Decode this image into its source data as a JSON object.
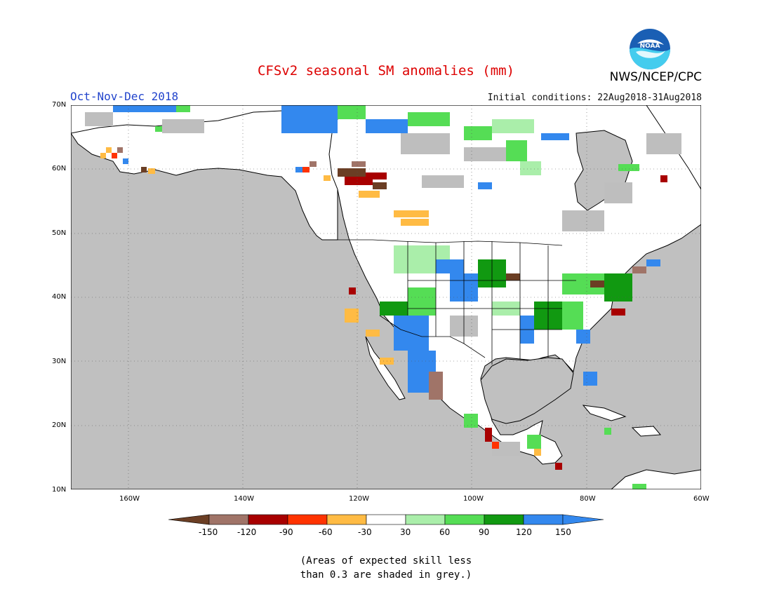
{
  "header": {
    "title": "CFSv2 seasonal SM anomalies (mm)",
    "season": "Oct-Nov-Dec 2018",
    "initial_conditions": "Initial conditions: 22Aug2018-31Aug2018",
    "agency": "NWS/NCEP/CPC",
    "logo_text": "NOAA"
  },
  "map": {
    "lat_range": [
      10,
      70
    ],
    "lon_range": [
      -170,
      -60
    ],
    "y_ticks": [
      "70N",
      "60N",
      "50N",
      "40N",
      "30N",
      "20N",
      "10N"
    ],
    "x_ticks": [
      "160W",
      "140W",
      "120W",
      "100W",
      "80W",
      "60W"
    ],
    "colors": {
      "ocean": "#c0c0c0",
      "land_low_skill": "#bebebe",
      "land": "#ffffff"
    }
  },
  "legend": {
    "labels": [
      "-150",
      "-120",
      "-90",
      "-60",
      "-30",
      "30",
      "60",
      "90",
      "120",
      "150"
    ],
    "colors": [
      "#6b3e24",
      "#a07468",
      "#a80000",
      "#ff3300",
      "#ffbb44",
      "#ffffff",
      "#aaeeaa",
      "#55dd55",
      "#119911",
      "#3388ee",
      "#3388ee"
    ]
  },
  "note": {
    "line1": "(Areas of expected skill less",
    "line2": "than 0.3 are shaded in grey.)"
  }
}
